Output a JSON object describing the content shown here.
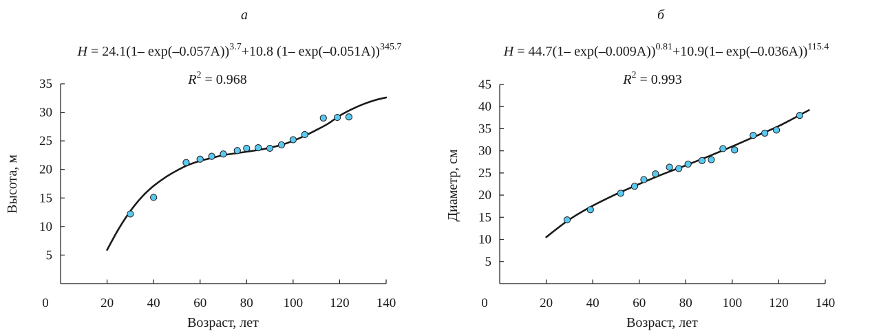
{
  "chart_data": [
    {
      "type": "scatter",
      "panel_label": "а",
      "equation": {
        "var": "H",
        "rhs_1": " = 24.1(1– exp(–0.057A))",
        "sup_1": "3.7",
        "rhs_2": "+10.8 (1– exp(–0.051A))",
        "sup_2": "345.7"
      },
      "r2": {
        "r": "R",
        "sup": "2",
        "value": " = 0.968"
      },
      "xlabel": "Возраст, лет",
      "ylabel": "Высота, м",
      "xlim": [
        0,
        140
      ],
      "ylim": [
        0,
        35
      ],
      "x_ticks": [
        0,
        20,
        40,
        60,
        80,
        100,
        120,
        140
      ],
      "y_ticks": [
        5,
        10,
        15,
        20,
        25,
        30,
        35
      ],
      "grid": false,
      "legend": "none",
      "point_color": "#5bc8f0",
      "line_color": "#1a1a1a",
      "series": [
        {
          "kind": "points",
          "x": [
            30,
            40,
            54,
            60,
            65,
            70,
            76,
            80,
            85,
            90,
            95,
            100,
            105,
            113,
            119,
            124
          ],
          "y": [
            12.2,
            15.1,
            21.2,
            21.8,
            22.3,
            22.7,
            23.3,
            23.7,
            23.8,
            23.7,
            24.3,
            25.2,
            26.1,
            29.0,
            29.1,
            29.2
          ]
        },
        {
          "kind": "fit-curve",
          "x": [
            20,
            25,
            30,
            35,
            40,
            45,
            50,
            55,
            60,
            65,
            70,
            75,
            80,
            85,
            90,
            95,
            100,
            105,
            110,
            115,
            120,
            125,
            130,
            135,
            140
          ],
          "y": [
            5.9,
            9.6,
            12.7,
            15.2,
            17.1,
            18.6,
            19.8,
            20.8,
            21.5,
            22.0,
            22.5,
            22.8,
            23.1,
            23.4,
            23.8,
            24.3,
            25.0,
            25.9,
            26.9,
            28.0,
            29.4,
            30.5,
            31.4,
            32.1,
            32.6
          ]
        }
      ]
    },
    {
      "type": "scatter",
      "panel_label": "б",
      "equation": {
        "var": "H",
        "rhs_1": " = 44.7(1– exp(–0.009A))",
        "sup_1": "0.81",
        "rhs_2": "+10.9(1– exp(–0.036A))",
        "sup_2": "115.4"
      },
      "r2": {
        "r": "R",
        "sup": "2",
        "value": " = 0.993"
      },
      "xlabel": "Возраст, лет",
      "ylabel": "Диаметр, см",
      "xlim": [
        0,
        140
      ],
      "ylim": [
        0,
        45
      ],
      "x_ticks": [
        0,
        20,
        40,
        60,
        80,
        100,
        120,
        140
      ],
      "y_ticks": [
        5,
        10,
        15,
        20,
        25,
        30,
        35,
        40,
        45
      ],
      "grid": false,
      "legend": "none",
      "point_color": "#5bc8f0",
      "line_color": "#1a1a1a",
      "series": [
        {
          "kind": "points",
          "x": [
            29,
            39,
            52,
            58,
            62,
            67,
            73,
            77,
            81,
            87,
            91,
            96,
            101,
            109,
            114,
            119,
            129
          ],
          "y": [
            14.4,
            16.7,
            20.4,
            22.0,
            23.5,
            24.8,
            26.3,
            26.0,
            27.0,
            27.8,
            28.0,
            30.5,
            30.2,
            33.5,
            34.0,
            34.7,
            38.0
          ]
        },
        {
          "kind": "fit-curve",
          "x": [
            20,
            30,
            40,
            50,
            60,
            70,
            80,
            90,
            100,
            110,
            120,
            133
          ],
          "y": [
            10.5,
            14.5,
            17.6,
            20.2,
            22.5,
            24.7,
            26.7,
            28.8,
            31.0,
            33.3,
            35.6,
            39.2
          ]
        }
      ]
    }
  ]
}
